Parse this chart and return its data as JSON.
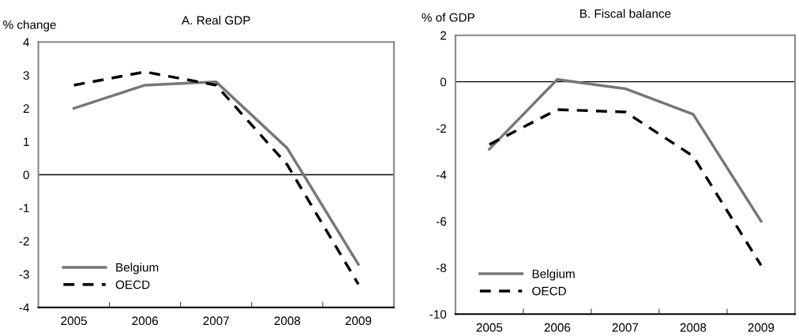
{
  "chart_data": [
    {
      "type": "line",
      "title": "A. Real GDP",
      "ylabel": "% change",
      "categories": [
        "2005",
        "2006",
        "2007",
        "2008",
        "2009"
      ],
      "series": [
        {
          "name": "Belgium",
          "color": "#777777",
          "line_style": "solid",
          "values": [
            2.0,
            2.7,
            2.8,
            0.8,
            -2.7
          ]
        },
        {
          "name": "OECD",
          "color": "#000000",
          "line_style": "dashed",
          "values": [
            2.7,
            3.1,
            2.7,
            0.3,
            -3.3
          ]
        }
      ],
      "ylim": [
        -4,
        4
      ],
      "yticks": [
        -4,
        -3,
        -2,
        -1,
        0,
        1,
        2,
        3,
        4
      ],
      "ref_lines": [
        {
          "axis": "y",
          "value": 0,
          "color": "#000000"
        }
      ],
      "legend": "bottom left",
      "grid": false
    },
    {
      "type": "line",
      "title": "B. Fiscal balance",
      "ylabel": "% of GDP",
      "categories": [
        "2005",
        "2006",
        "2007",
        "2008",
        "2009"
      ],
      "series": [
        {
          "name": "Belgium",
          "color": "#777777",
          "line_style": "solid",
          "values": [
            -2.9,
            0.1,
            -0.3,
            -1.4,
            -6.0
          ]
        },
        {
          "name": "OECD",
          "color": "#000000",
          "line_style": "dashed",
          "values": [
            -2.7,
            -1.2,
            -1.3,
            -3.2,
            -7.9
          ]
        }
      ],
      "ylim": [
        -10,
        2
      ],
      "yticks": [
        -10,
        -8,
        -6,
        -4,
        -2,
        0,
        2
      ],
      "ref_lines": [
        {
          "axis": "y",
          "value": 0,
          "color": "#000000"
        }
      ],
      "legend": "bottom left",
      "grid": false
    }
  ]
}
